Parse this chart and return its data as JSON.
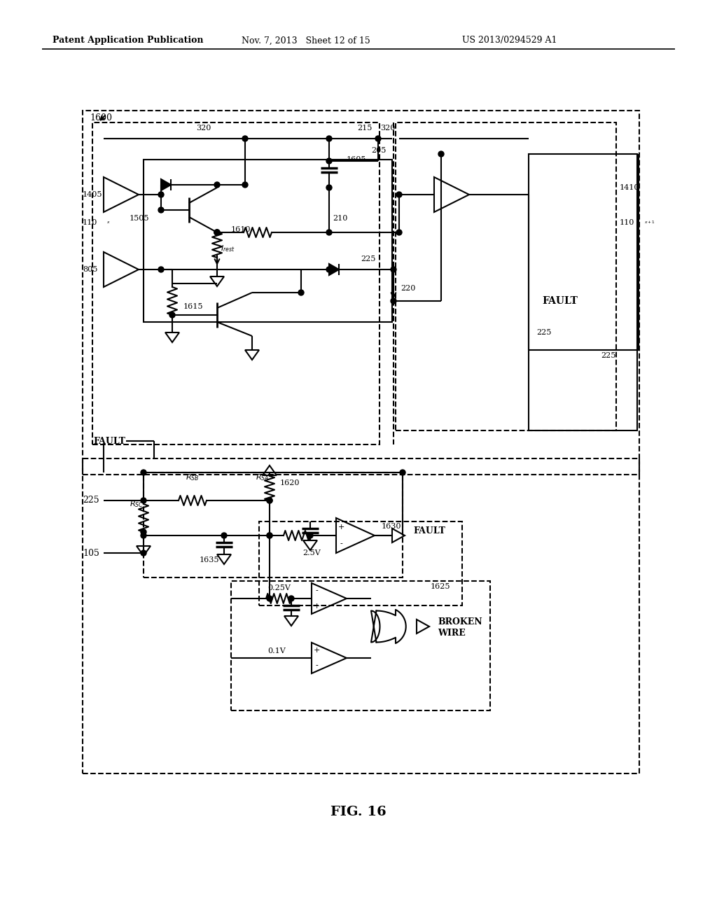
{
  "background_color": "#ffffff",
  "header_left": "Patent Application Publication",
  "header_mid": "Nov. 7, 2013   Sheet 12 of 15",
  "header_right": "US 2013/0294529 A1",
  "figure_label": "FIG. 16"
}
